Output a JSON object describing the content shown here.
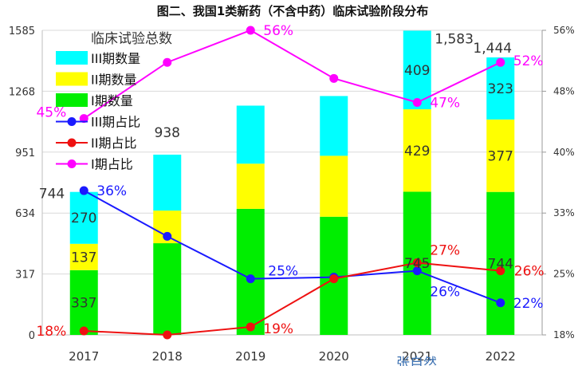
{
  "chart_data": {
    "type": "bar",
    "title": "图二、我国1类新药（不含中药）临床试验阶段分布",
    "categories": [
      "2017",
      "2018",
      "2019",
      "2020",
      "2021",
      "2022"
    ],
    "legend_title": "临床试验总数",
    "left_axis": {
      "ticks": [
        "0",
        "317",
        "634",
        "951",
        "1268",
        "1585"
      ],
      "ylim": [
        0,
        1585
      ]
    },
    "right_axis": {
      "ticks": [
        "18%",
        "25%",
        "33%",
        "40%",
        "48%",
        "56%"
      ],
      "ylim": [
        18,
        56
      ]
    },
    "series": [
      {
        "name": "I期数量",
        "kind": "bar",
        "color": "#00ee00",
        "values": [
          337,
          477,
          656,
          615,
          745,
          744
        ],
        "labels": [
          "337",
          "",
          "",
          "",
          "745",
          "744"
        ]
      },
      {
        "name": "II期数量",
        "kind": "bar",
        "color": "#ffff00",
        "values": [
          137,
          170,
          235,
          317,
          429,
          377
        ],
        "labels": [
          "137",
          "",
          "",
          "",
          "429",
          "377"
        ]
      },
      {
        "name": "III期数量",
        "kind": "bar",
        "color": "#00ffff",
        "values": [
          270,
          291,
          302,
          311,
          409,
          323
        ],
        "labels": [
          "270",
          "",
          "",
          "",
          "409",
          "323"
        ]
      },
      {
        "name": "III期占比",
        "kind": "line",
        "color": "#1a1aff",
        "values": [
          36,
          30.3,
          25,
          25.2,
          26,
          22
        ],
        "labels": [
          "36%",
          "",
          "25%",
          "",
          "26%",
          "22%"
        ]
      },
      {
        "name": "II期占比",
        "kind": "line",
        "color": "#ee1111",
        "values": [
          18.5,
          18,
          19,
          25,
          27,
          26
        ],
        "labels": [
          "18%",
          "",
          "19%",
          "",
          "27%",
          "26%"
        ]
      },
      {
        "name": "I期占比",
        "kind": "line",
        "color": "#ff00ff",
        "values": [
          45,
          52,
          56,
          50,
          47,
          52
        ],
        "labels": [
          "45%",
          "",
          "56%",
          "",
          "47%",
          "52%"
        ]
      }
    ],
    "totals": [
      "744",
      "938",
      "",
      "",
      "1,583",
      "1,444"
    ],
    "watermark": "张自然"
  }
}
